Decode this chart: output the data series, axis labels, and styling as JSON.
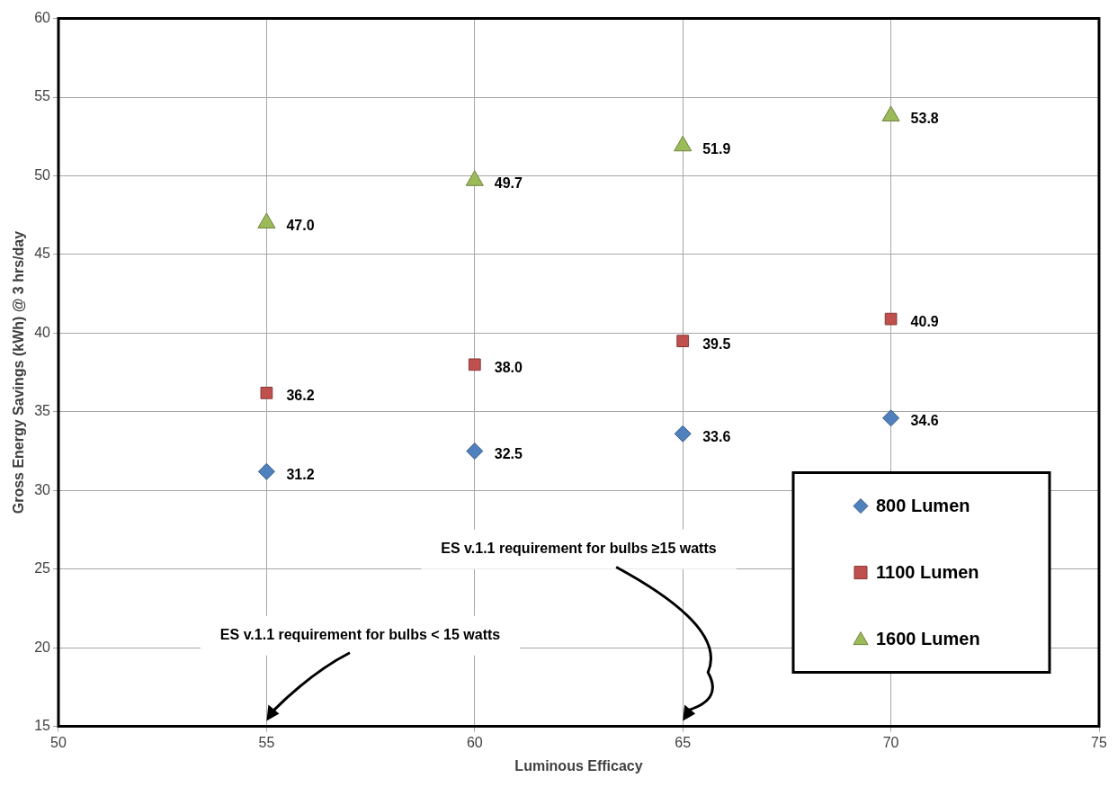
{
  "chart_data": {
    "type": "scatter",
    "xlabel": "Luminous Efficacy",
    "ylabel": "Gross Energy Savings (kWh) @ 3 hrs/day",
    "x": [
      55,
      60,
      65,
      70
    ],
    "series": [
      {
        "name": "800 Lumen",
        "color": "#4f81bd",
        "marker": "diamond",
        "values": [
          31.2,
          32.5,
          33.6,
          34.6
        ],
        "value_labels": [
          "31.2",
          "32.5",
          "33.6",
          "34.6"
        ]
      },
      {
        "name": "1100 Lumen",
        "color": "#c0504d",
        "marker": "square",
        "values": [
          36.2,
          38.0,
          39.5,
          40.9
        ],
        "value_labels": [
          "36.2",
          "38.0",
          "39.5",
          "40.9"
        ]
      },
      {
        "name": "1600 Lumen",
        "color": "#9bbb59",
        "marker": "triangle",
        "values": [
          47.0,
          49.7,
          51.9,
          53.8
        ],
        "value_labels": [
          "47.0",
          "49.7",
          "51.9",
          "53.8"
        ]
      }
    ],
    "xlim": [
      50,
      75
    ],
    "xticks": [
      50,
      55,
      60,
      65,
      70,
      75
    ],
    "ylim": [
      15,
      60
    ],
    "yticks": [
      15,
      20,
      25,
      30,
      35,
      40,
      45,
      50,
      55,
      60
    ],
    "grid": true,
    "legend": "bottom right",
    "annotations": [
      "ES v.1.1 requirement for bulbs < 15 watts",
      "ES v.1.1 requirement for bulbs ≥15 watts"
    ]
  }
}
